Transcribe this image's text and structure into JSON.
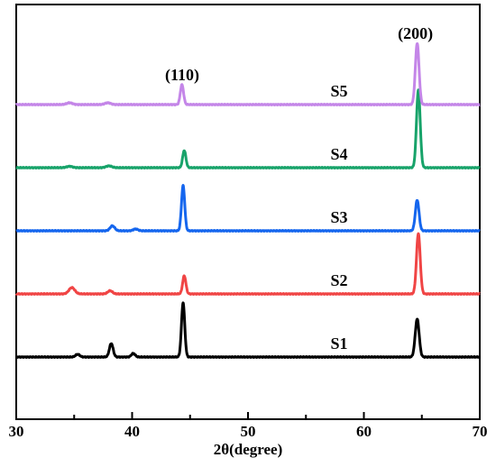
{
  "chart_data": {
    "type": "line",
    "xlabel": "2θ(degree)",
    "ylabel": "",
    "xlim": [
      30,
      70
    ],
    "xticks": [
      "30",
      "40",
      "50",
      "60",
      "70"
    ],
    "grid": false,
    "annotations": [
      {
        "text": "(110)",
        "x": 44.4
      },
      {
        "text": "(200)",
        "x": 64.6
      }
    ],
    "series": [
      {
        "name": "S1",
        "color": "#000000",
        "baseline": 0,
        "peaks": [
          {
            "x": 35.3,
            "h": 0.3,
            "w": 0.18
          },
          {
            "x": 38.2,
            "h": 1.5,
            "w": 0.16
          },
          {
            "x": 40.1,
            "h": 0.4,
            "w": 0.16
          },
          {
            "x": 44.4,
            "h": 6.0,
            "w": 0.14
          },
          {
            "x": 64.6,
            "h": 4.2,
            "w": 0.17
          }
        ]
      },
      {
        "name": "S2",
        "color": "#f04545",
        "baseline": 7.0,
        "peaks": [
          {
            "x": 34.8,
            "h": 0.7,
            "w": 0.25
          },
          {
            "x": 38.1,
            "h": 0.35,
            "w": 0.2
          },
          {
            "x": 44.5,
            "h": 2.0,
            "w": 0.14
          },
          {
            "x": 64.7,
            "h": 6.7,
            "w": 0.16
          }
        ]
      },
      {
        "name": "S3",
        "color": "#1566ee",
        "baseline": 14.0,
        "peaks": [
          {
            "x": 38.3,
            "h": 0.55,
            "w": 0.2
          },
          {
            "x": 40.3,
            "h": 0.2,
            "w": 0.2
          },
          {
            "x": 44.4,
            "h": 5.0,
            "w": 0.14
          },
          {
            "x": 64.6,
            "h": 3.4,
            "w": 0.16
          }
        ]
      },
      {
        "name": "S4",
        "color": "#18a36a",
        "baseline": 21.0,
        "peaks": [
          {
            "x": 34.6,
            "h": 0.15,
            "w": 0.25
          },
          {
            "x": 38.0,
            "h": 0.2,
            "w": 0.25
          },
          {
            "x": 44.5,
            "h": 1.9,
            "w": 0.14
          },
          {
            "x": 64.7,
            "h": 8.6,
            "w": 0.16
          }
        ]
      },
      {
        "name": "S5",
        "color": "#c486e8",
        "baseline": 28.0,
        "peaks": [
          {
            "x": 34.6,
            "h": 0.2,
            "w": 0.25
          },
          {
            "x": 37.9,
            "h": 0.2,
            "w": 0.25
          },
          {
            "x": 44.3,
            "h": 2.2,
            "w": 0.14
          },
          {
            "x": 64.6,
            "h": 6.8,
            "w": 0.16
          }
        ]
      }
    ]
  }
}
